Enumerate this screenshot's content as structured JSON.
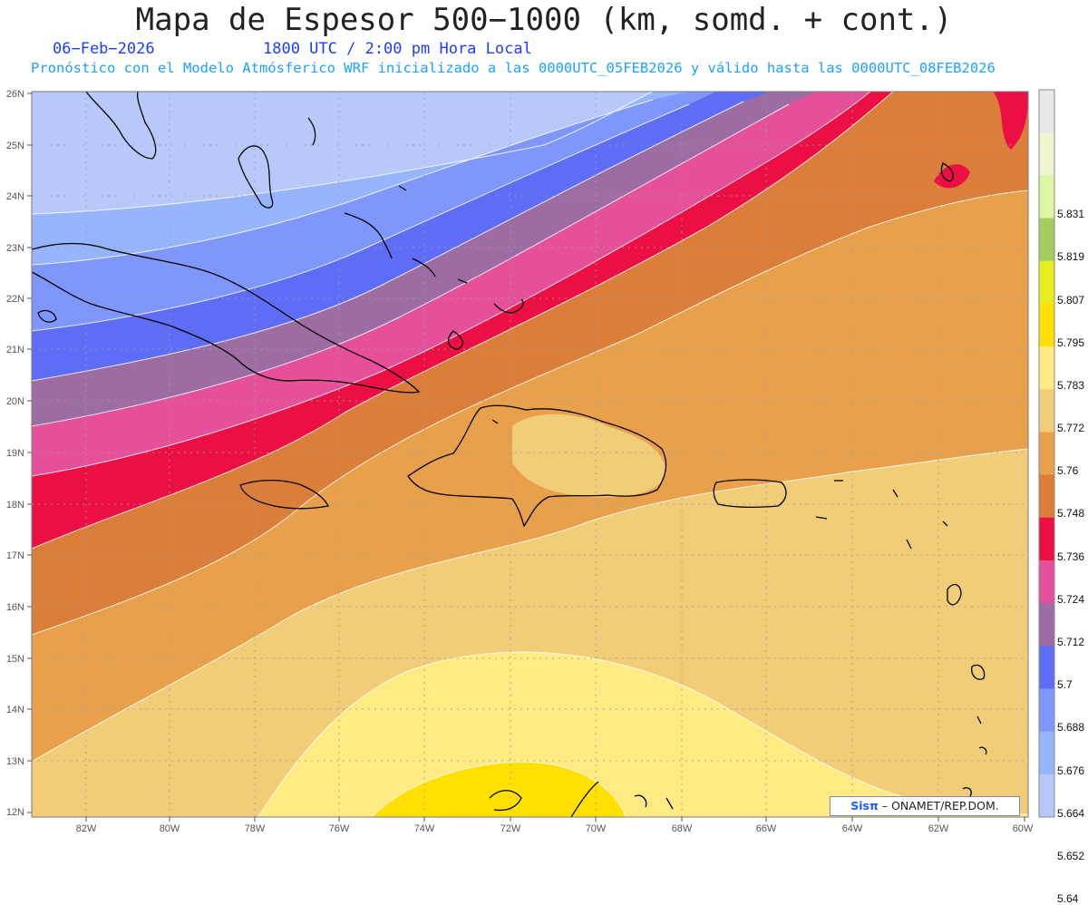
{
  "header": {
    "title": "Mapa de Espesor 500−1000 (km, somd. + cont.)",
    "date": "06−Feb−2026",
    "time": "1800 UTC / 2:00 pm Hora Local",
    "subtitle": "Pronóstico con el Modelo Atmósferico WRF inicializado a las 0000UTC_05FEB2026 y válido hasta las  0000UTC_08FEB2026"
  },
  "map": {
    "lat_ticks": [
      "26N",
      "25N",
      "24N",
      "23N",
      "22N",
      "21N",
      "20N",
      "19N",
      "18N",
      "17N",
      "16N",
      "15N",
      "14N",
      "13N",
      "12N"
    ],
    "lon_ticks": [
      "82W",
      "80W",
      "78W",
      "76W",
      "74W",
      "72W",
      "70W",
      "68W",
      "66W",
      "64W",
      "62W",
      "60W"
    ]
  },
  "legend": {
    "levels": [
      "5.831",
      "5.819",
      "5.807",
      "5.795",
      "5.783",
      "5.772",
      "5.76",
      "5.748",
      "5.736",
      "5.724",
      "5.712",
      "5.7",
      "5.688",
      "5.676",
      "5.664",
      "5.652",
      "5.64"
    ],
    "colors": [
      "#e8e8e8",
      "#eef5d2",
      "#def5a3",
      "#a5cc5c",
      "#e6ee1e",
      "#ffe000",
      "#ffeb82",
      "#f2cd78",
      "#e9a04a",
      "#db7e3a",
      "#ec0f44",
      "#e6509a",
      "#9c6ca3",
      "#5f6cf5",
      "#7f97fc",
      "#97b5fd",
      "#b8c8fb"
    ]
  },
  "credit": {
    "logo": "Sisπ",
    "text": "– ONAMET/REP.DOM."
  }
}
